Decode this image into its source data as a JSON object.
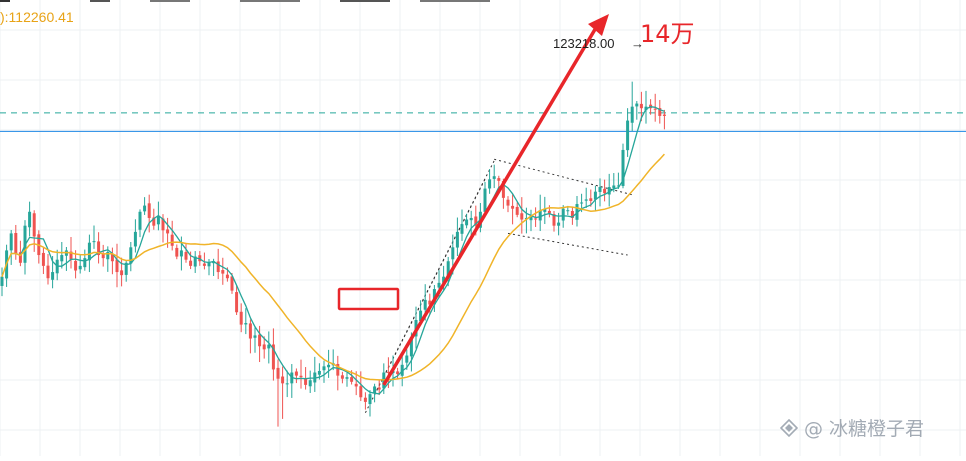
{
  "readout": {
    "ma_value": "):112260.41"
  },
  "annotations": {
    "peak_price": "123218.00",
    "peak_arrow": "→",
    "target": "14万"
  },
  "watermark": {
    "text": "@ 冰糖橙子君"
  },
  "colors": {
    "up": "#26a69a",
    "down": "#ef5350",
    "ma_fast": "#26a69a",
    "ma_slow": "#f0b429",
    "annotation_red": "#e8262a",
    "level_blue": "#1e88e5",
    "level_teal": "#26a69a",
    "grid": "#eef0f3"
  },
  "chart_data": {
    "type": "candlestick",
    "ylim": [
      99000,
      128500
    ],
    "grid": true,
    "levels": [
      {
        "style": "dashed",
        "value": 121200
      },
      {
        "style": "solid",
        "value": 120000
      }
    ],
    "closes": [
      110600,
      112300,
      113400,
      112100,
      111500,
      113900,
      114800,
      113200,
      112000,
      111300,
      110500,
      110900,
      111700,
      112000,
      112300,
      111700,
      111000,
      111300,
      111800,
      112800,
      112900,
      112000,
      111800,
      112200,
      111600,
      110900,
      110700,
      111500,
      112500,
      113500,
      114800,
      115200,
      114400,
      113900,
      114500,
      113600,
      113400,
      112600,
      111900,
      112300,
      111700,
      111300,
      111900,
      111600,
      111300,
      111500,
      111600,
      110900,
      110800,
      110500,
      109700,
      108300,
      107500,
      107600,
      106600,
      106800,
      106100,
      105900,
      106200,
      104600,
      104000,
      103700,
      103700,
      104400,
      104200,
      104100,
      103600,
      103900,
      104400,
      104500,
      104800,
      104900,
      105000,
      104200,
      104000,
      104100,
      103800,
      103500,
      102800,
      102500,
      103000,
      103500,
      103300,
      104400,
      104400,
      104500,
      104300,
      104900,
      105500,
      106700,
      107800,
      108400,
      109100,
      108800,
      109800,
      110200,
      110600,
      111600,
      112500,
      113500,
      114000,
      114300,
      114400,
      113900,
      114800,
      116300,
      116900,
      117100,
      116800,
      115700,
      115200,
      115000,
      114600,
      114300,
      114400,
      114500,
      114300,
      114900,
      115000,
      114700,
      113900,
      114100,
      115000,
      114900,
      114400,
      115300,
      115400,
      115600,
      115500,
      116100,
      116400,
      116000,
      116400,
      116500,
      116500,
      118800,
      120700,
      121600,
      121800,
      121500,
      121600,
      121500,
      121400,
      121000,
      121000
    ]
  }
}
